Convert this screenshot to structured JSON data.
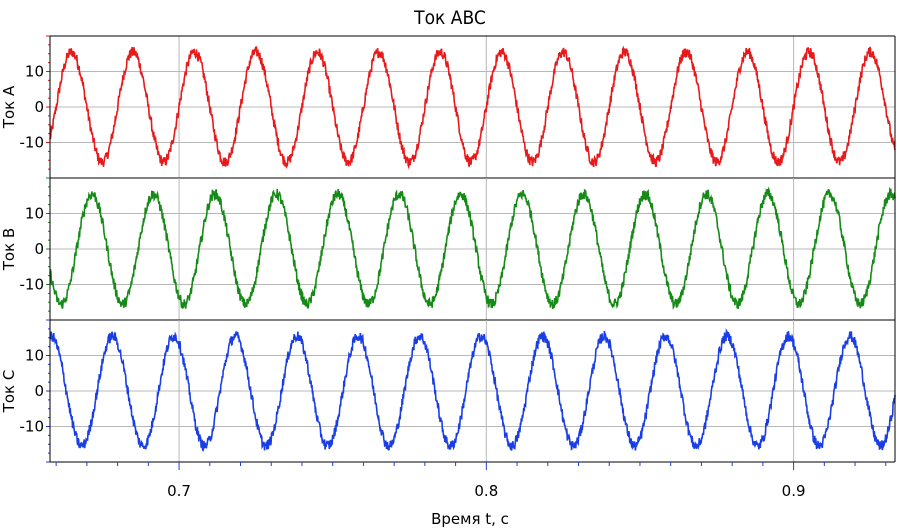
{
  "chart_data": {
    "type": "line",
    "title": "Ток ABC",
    "xlabel": "Время t, с",
    "xlim": [
      0.658,
      0.933
    ],
    "x_ticks": [
      "0.7",
      "0.8",
      "0.9"
    ],
    "x_tick_values": [
      0.7,
      0.8,
      0.9
    ],
    "grid": true,
    "subplots": [
      {
        "ylabel": "Ток A",
        "ylim": [
          -20,
          20
        ],
        "y_ticks": [
          "10",
          "0",
          "-10"
        ],
        "y_tick_values": [
          10,
          0,
          -10
        ],
        "color": "#e8191b",
        "series": [
          {
            "name": "",
            "amplitude": 15.5,
            "frequency_hz": 50,
            "phase_deg": 0,
            "noise": 1.5
          }
        ]
      },
      {
        "ylabel": "Ток B",
        "ylim": [
          -20,
          20
        ],
        "y_ticks": [
          "10",
          "0",
          "-10"
        ],
        "y_tick_values": [
          10,
          0,
          -10
        ],
        "color": "#168a16",
        "series": [
          {
            "name": "",
            "amplitude": 15.5,
            "frequency_hz": 50,
            "phase_deg": -120,
            "noise": 1.5
          }
        ]
      },
      {
        "ylabel": "Ток C",
        "ylim": [
          -20,
          20
        ],
        "y_ticks": [
          "10",
          "0",
          "-10"
        ],
        "y_tick_values": [
          10,
          0,
          -10
        ],
        "color": "#1a3ee6",
        "series": [
          {
            "name": "",
            "amplitude": 15.5,
            "frequency_hz": 50,
            "phase_deg": 120,
            "noise": 1.5
          }
        ]
      }
    ]
  }
}
